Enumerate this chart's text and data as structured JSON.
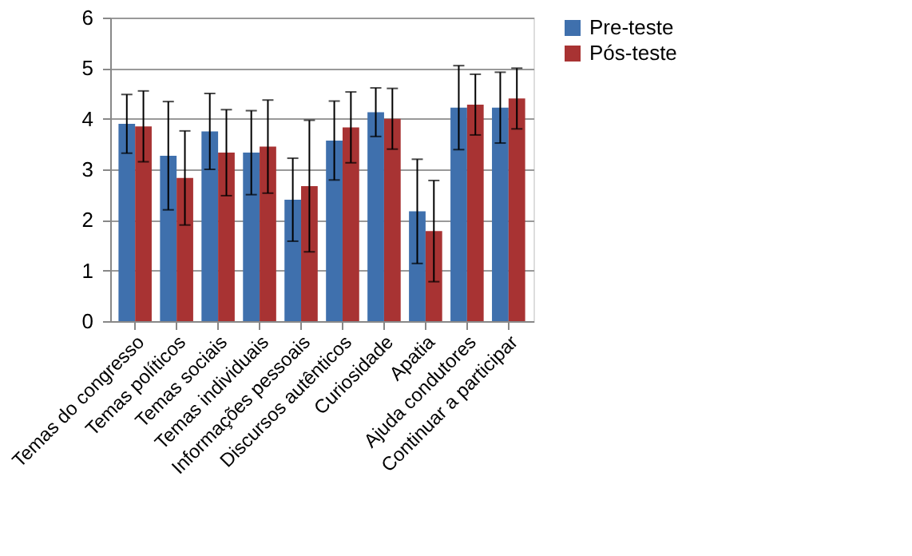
{
  "chart_data": {
    "type": "bar",
    "categories": [
      "Temas do congresso",
      "Temas políticos",
      "Temas sociais",
      "Temas individuais",
      "Informações pessoais",
      "Discursos autênticos",
      "Curiosidade",
      "Apatia",
      "Ajuda condutores",
      "Continuar a participar"
    ],
    "series": [
      {
        "name": "Pre-teste",
        "color": "#3f70ad",
        "values": [
          3.9,
          3.27,
          3.75,
          3.33,
          2.4,
          3.57,
          4.13,
          2.17,
          4.22,
          4.22
        ],
        "errors": [
          0.58,
          1.07,
          0.75,
          0.83,
          0.82,
          0.78,
          0.48,
          1.03,
          0.83,
          0.7
        ]
      },
      {
        "name": "Pós-teste",
        "color": "#a83333",
        "values": [
          3.85,
          2.83,
          3.33,
          3.45,
          2.67,
          3.83,
          4.0,
          1.78,
          4.28,
          4.4
        ],
        "errors": [
          0.7,
          0.93,
          0.85,
          0.92,
          1.3,
          0.7,
          0.6,
          1.0,
          0.6,
          0.6
        ]
      }
    ],
    "ylim": [
      0,
      6
    ],
    "yticks": [
      0,
      1,
      2,
      3,
      4,
      5,
      6
    ],
    "grid": "y",
    "legend": "right"
  }
}
